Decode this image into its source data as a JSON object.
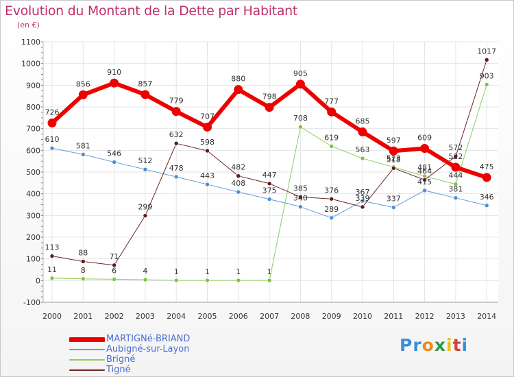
{
  "title": "Evolution du Montant de la Dette par Habitant",
  "subtitle": "(en €)",
  "logo": {
    "text": "Proxiti",
    "letter_colors": [
      "#3a8fd8",
      "#3a8fd8",
      "#f08a18",
      "#2e9a48",
      "#e8c020",
      "#d84040",
      "#3a8fd8"
    ]
  },
  "chart_data": {
    "type": "line",
    "title": "Evolution du Montant de la Dette par Habitant",
    "subtitle": "(en €)",
    "x": [
      "2000",
      "2001",
      "2002",
      "2003",
      "2004",
      "2005",
      "2006",
      "2007",
      "2008",
      "2009",
      "2010",
      "2011",
      "2012",
      "2013",
      "2014"
    ],
    "ylim": [
      -100,
      1100
    ],
    "yticks": [
      "-100",
      "0",
      "100",
      "200",
      "300",
      "400",
      "500",
      "600",
      "700",
      "800",
      "900",
      "1000",
      "1100"
    ],
    "grid": true,
    "legend_position": "bottom-left",
    "series": [
      {
        "name": "MARTIGNé-BRIAND",
        "color": "#ee0000",
        "width": 6,
        "values": [
          726,
          856,
          910,
          857,
          779,
          707,
          880,
          798,
          905,
          777,
          685,
          597,
          609,
          522,
          475
        ]
      },
      {
        "name": "Aubigné-sur-Layon",
        "color": "#5e9cd4",
        "width": 1,
        "values": [
          610,
          581,
          546,
          512,
          478,
          443,
          408,
          375,
          340,
          289,
          367,
          337,
          415,
          381,
          346
        ]
      },
      {
        "name": "Brigné",
        "color": "#8ccd5a",
        "width": 1,
        "values": [
          11,
          8,
          6,
          4,
          1,
          1,
          1,
          1,
          708,
          619,
          563,
          523,
          481,
          444,
          903
        ]
      },
      {
        "name": "Tigné",
        "color": "#6d2424",
        "width": 1,
        "values": [
          113,
          88,
          71,
          299,
          632,
          598,
          482,
          447,
          385,
          376,
          339,
          518,
          464,
          572,
          1017
        ]
      }
    ],
    "point_labels": [
      [
        "726",
        "856",
        "910",
        "857",
        "779",
        "707",
        "880",
        "798",
        "905",
        "777",
        "685",
        "597",
        "609",
        "522",
        "475"
      ],
      [
        "610",
        "581",
        "546",
        "512",
        "478",
        "443",
        "408",
        "375",
        "340",
        "289",
        "367",
        "337",
        "415",
        "381",
        "346"
      ],
      [
        "11",
        "8",
        "6",
        "4",
        "1",
        "1",
        "1",
        "1",
        "708",
        "619",
        "563",
        "523",
        "481",
        "444",
        "903"
      ],
      [
        "113",
        "88",
        "71",
        "299",
        "632",
        "598",
        "482",
        "447",
        "385",
        "376",
        "339",
        "518",
        "464",
        "572",
        "1017"
      ]
    ]
  },
  "legend": [
    {
      "label": "MARTIGNé-BRIAND",
      "color": "#ee0000"
    },
    {
      "label": "Aubigné-sur-Layon",
      "color": "#5e9cd4"
    },
    {
      "label": "Brigné",
      "color": "#8ccd5a"
    },
    {
      "label": "Tigné",
      "color": "#6d2424"
    }
  ]
}
